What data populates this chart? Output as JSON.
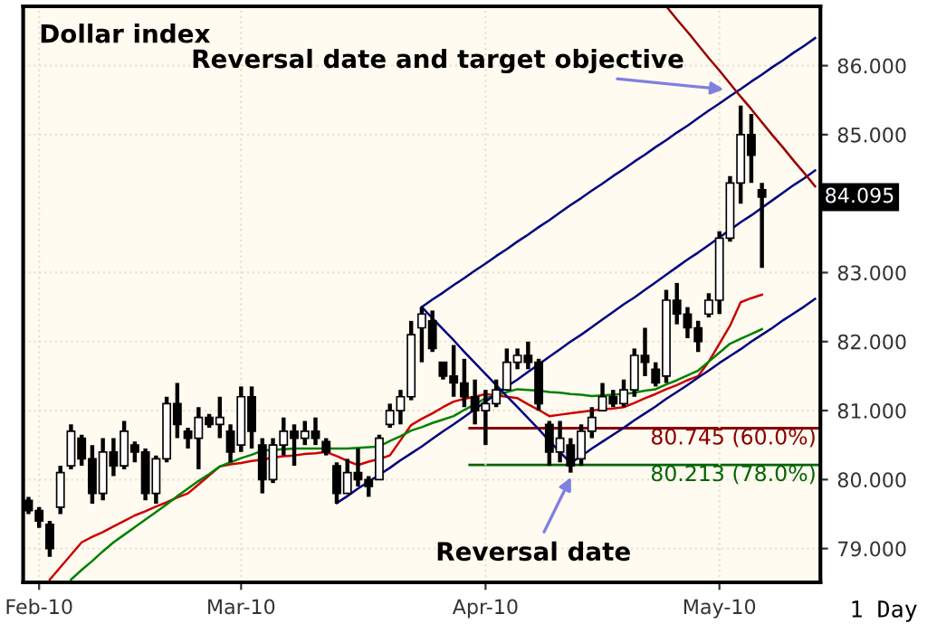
{
  "chart_data": {
    "type": "candlestick",
    "title": "Dollar index",
    "categories": [
      null,
      "Feb-10",
      null,
      null,
      null,
      null,
      null,
      null,
      null,
      null,
      null,
      null,
      null,
      null,
      null,
      null,
      null,
      null,
      null,
      null,
      "Mar-10",
      null,
      null,
      null,
      null,
      null,
      null,
      null,
      null,
      null,
      null,
      null,
      null,
      null,
      null,
      null,
      null,
      null,
      null,
      null,
      null,
      null,
      null,
      "Apr-10",
      null,
      null,
      null,
      null,
      null,
      null,
      null,
      null,
      null,
      null,
      null,
      null,
      null,
      null,
      null,
      null,
      null,
      null,
      null,
      null,
      null,
      "May-10",
      null,
      null,
      null,
      null,
      null,
      null,
      null,
      null,
      null
    ],
    "ohlc": [
      [
        79.7,
        79.75,
        79.5,
        79.55
      ],
      [
        79.55,
        79.6,
        79.3,
        79.4
      ],
      [
        79.35,
        79.4,
        78.88,
        79.0
      ],
      [
        79.6,
        80.2,
        79.5,
        80.1
      ],
      [
        80.2,
        80.8,
        80.15,
        80.7
      ],
      [
        80.6,
        80.65,
        80.2,
        80.3
      ],
      [
        80.3,
        80.5,
        79.65,
        79.8
      ],
      [
        79.8,
        80.6,
        79.7,
        80.4
      ],
      [
        80.4,
        80.6,
        80.05,
        80.2
      ],
      [
        80.2,
        80.85,
        80.15,
        80.7
      ],
      [
        80.5,
        80.55,
        80.25,
        80.4
      ],
      [
        80.4,
        80.45,
        79.7,
        79.8
      ],
      [
        79.8,
        80.35,
        79.65,
        80.3
      ],
      [
        80.3,
        81.2,
        80.25,
        81.1
      ],
      [
        81.1,
        81.4,
        80.6,
        80.8
      ],
      [
        80.7,
        80.75,
        80.45,
        80.6
      ],
      [
        80.6,
        81.05,
        80.15,
        80.9
      ],
      [
        80.9,
        80.95,
        80.75,
        80.8
      ],
      [
        80.8,
        81.2,
        80.6,
        80.9
      ],
      [
        80.7,
        80.8,
        80.25,
        80.4
      ],
      [
        80.5,
        81.35,
        80.4,
        81.2
      ],
      [
        81.2,
        81.35,
        80.45,
        80.7
      ],
      [
        80.5,
        80.6,
        79.8,
        80.0
      ],
      [
        80.0,
        80.6,
        79.95,
        80.5
      ],
      [
        80.5,
        80.9,
        80.35,
        80.7
      ],
      [
        80.7,
        80.8,
        80.2,
        80.6
      ],
      [
        80.6,
        80.85,
        80.5,
        80.7
      ],
      [
        80.7,
        80.9,
        80.5,
        80.6
      ],
      [
        80.55,
        80.6,
        80.35,
        80.4
      ],
      [
        80.2,
        80.25,
        79.65,
        79.8
      ],
      [
        79.8,
        80.3,
        79.8,
        80.1
      ],
      [
        80.1,
        80.45,
        79.9,
        80.0
      ],
      [
        80.0,
        80.05,
        79.75,
        79.9
      ],
      [
        80.0,
        80.65,
        80.0,
        80.6
      ],
      [
        80.8,
        81.1,
        80.75,
        81.0
      ],
      [
        81.0,
        81.3,
        80.8,
        81.2
      ],
      [
        81.2,
        82.3,
        81.15,
        82.1
      ],
      [
        82.2,
        82.5,
        81.7,
        82.4
      ],
      [
        82.3,
        82.45,
        81.85,
        81.9
      ],
      [
        81.7,
        81.7,
        81.45,
        81.5
      ],
      [
        81.5,
        81.95,
        81.2,
        81.4
      ],
      [
        81.4,
        81.75,
        81.05,
        81.2
      ],
      [
        81.2,
        81.45,
        80.8,
        81.0
      ],
      [
        81.0,
        81.3,
        80.5,
        81.1
      ],
      [
        81.1,
        81.45,
        81.05,
        81.3
      ],
      [
        81.3,
        81.9,
        81.3,
        81.7
      ],
      [
        81.7,
        81.9,
        81.6,
        81.8
      ],
      [
        81.8,
        82.0,
        81.6,
        81.7
      ],
      [
        81.7,
        81.75,
        81.0,
        81.1
      ],
      [
        80.8,
        80.85,
        80.2,
        80.4
      ],
      [
        80.4,
        80.85,
        80.25,
        80.6
      ],
      [
        80.5,
        80.6,
        80.1,
        80.2
      ],
      [
        80.3,
        80.8,
        80.2,
        80.7
      ],
      [
        80.7,
        81.05,
        80.6,
        80.9
      ],
      [
        81.0,
        81.4,
        81.0,
        81.2
      ],
      [
        81.2,
        81.3,
        81.05,
        81.1
      ],
      [
        81.1,
        81.45,
        81.05,
        81.3
      ],
      [
        81.3,
        81.9,
        81.2,
        81.8
      ],
      [
        81.8,
        82.2,
        81.5,
        81.7
      ],
      [
        81.6,
        81.7,
        81.35,
        81.4
      ],
      [
        81.5,
        82.75,
        81.4,
        82.6
      ],
      [
        82.6,
        82.85,
        82.25,
        82.4
      ],
      [
        82.4,
        82.5,
        82.05,
        82.2
      ],
      [
        82.2,
        82.3,
        81.85,
        82.0
      ],
      [
        82.4,
        82.7,
        82.35,
        82.6
      ],
      [
        82.6,
        83.6,
        82.4,
        83.5
      ],
      [
        83.5,
        84.4,
        83.45,
        84.3
      ],
      [
        84.3,
        85.42,
        84.0,
        85.0
      ],
      [
        85.0,
        85.3,
        84.3,
        84.7
      ],
      [
        84.2,
        84.3,
        83.07,
        84.095
      ],
      null,
      null,
      null,
      null,
      null
    ],
    "series": [
      {
        "type": "line",
        "color": "#cc0000",
        "values": [
          null,
          null,
          78.55,
          78.73,
          78.91,
          79.09,
          79.17,
          79.24,
          79.32,
          79.4,
          79.48,
          79.54,
          79.61,
          79.67,
          79.74,
          79.8,
          79.93,
          80.06,
          80.19,
          80.22,
          80.24,
          80.27,
          80.29,
          80.32,
          80.34,
          80.35,
          80.37,
          80.38,
          80.4,
          80.34,
          80.27,
          80.21,
          80.26,
          80.3,
          80.35,
          80.57,
          80.79,
          80.88,
          80.96,
          81.05,
          81.13,
          81.17,
          81.2,
          81.24,
          81.22,
          81.2,
          81.18,
          81.09,
          81.01,
          80.92,
          80.94,
          80.96,
          80.98,
          81.0,
          81.02,
          81.03,
          81.05,
          81.11,
          81.18,
          81.24,
          81.31,
          81.37,
          81.44,
          81.5,
          81.71,
          81.97,
          82.23,
          82.57,
          82.63,
          82.68,
          null,
          null,
          null,
          null,
          null
        ]
      },
      {
        "type": "line",
        "color": "#008000",
        "values": [
          null,
          null,
          null,
          null,
          78.55,
          78.69,
          78.82,
          78.96,
          79.09,
          79.2,
          79.31,
          79.42,
          79.53,
          79.64,
          79.76,
          79.87,
          79.98,
          80.08,
          80.19,
          80.25,
          80.31,
          80.36,
          80.42,
          80.43,
          80.44,
          80.45,
          80.45,
          80.45,
          80.45,
          80.45,
          80.45,
          80.46,
          80.47,
          80.48,
          80.56,
          80.63,
          80.71,
          80.76,
          80.82,
          80.87,
          80.92,
          81.01,
          81.09,
          81.18,
          81.22,
          81.27,
          81.31,
          81.3,
          81.29,
          81.27,
          81.26,
          81.24,
          81.23,
          81.21,
          81.22,
          81.23,
          81.24,
          81.26,
          81.29,
          81.31,
          81.38,
          81.44,
          81.51,
          81.58,
          81.71,
          81.84,
          81.97,
          82.04,
          82.11,
          82.18,
          null,
          null,
          null,
          null,
          null
        ]
      },
      {
        "type": "line",
        "color": "#000080",
        "values": [
          null,
          null,
          null,
          null,
          null,
          null,
          null,
          null,
          null,
          null,
          null,
          null,
          null,
          null,
          null,
          null,
          null,
          null,
          null,
          null,
          null,
          null,
          null,
          null,
          null,
          null,
          null,
          null,
          null,
          null,
          null,
          null,
          null,
          null,
          null,
          null,
          null,
          82.5,
          82.61,
          82.71,
          82.82,
          82.92,
          83.03,
          83.13,
          83.24,
          83.34,
          83.45,
          83.55,
          83.66,
          83.76,
          83.87,
          83.98,
          84.08,
          84.19,
          84.29,
          84.4,
          84.5,
          84.61,
          84.71,
          84.82,
          84.92,
          85.03,
          85.13,
          85.24,
          85.35,
          85.45,
          85.56,
          85.66,
          85.77,
          85.87,
          85.98,
          86.08,
          86.19,
          86.29,
          86.4
        ]
      },
      {
        "type": "line",
        "color": "#000080",
        "values": [
          null,
          null,
          null,
          null,
          null,
          null,
          null,
          null,
          null,
          null,
          null,
          null,
          null,
          null,
          null,
          null,
          null,
          null,
          null,
          null,
          null,
          null,
          null,
          null,
          null,
          null,
          null,
          null,
          null,
          79.66,
          79.76,
          79.87,
          79.97,
          80.07,
          80.17,
          80.28,
          80.38,
          80.48,
          80.59,
          80.7,
          80.8,
          80.91,
          81.02,
          81.13,
          81.24,
          81.35,
          81.45,
          81.56,
          81.67,
          81.78,
          81.89,
          82.0,
          82.1,
          82.21,
          82.32,
          82.43,
          82.54,
          82.64,
          82.75,
          82.86,
          82.97,
          83.08,
          83.19,
          83.29,
          83.4,
          83.51,
          83.62,
          83.73,
          83.83,
          83.94,
          84.05,
          84.16,
          84.27,
          84.37,
          84.48
        ]
      },
      {
        "type": "line",
        "color": "#000080",
        "values": [
          null,
          null,
          null,
          null,
          null,
          null,
          null,
          null,
          null,
          null,
          null,
          null,
          null,
          null,
          null,
          null,
          null,
          null,
          null,
          null,
          null,
          null,
          null,
          null,
          null,
          null,
          null,
          null,
          null,
          null,
          null,
          null,
          null,
          null,
          null,
          null,
          null,
          82.5,
          82.34,
          82.18,
          82.02,
          81.85,
          81.69,
          81.53,
          81.37,
          81.21,
          81.05,
          80.89,
          80.73,
          80.56,
          80.4,
          80.24,
          80.34,
          80.45,
          80.55,
          80.65,
          80.75,
          80.86,
          80.96,
          81.06,
          81.17,
          81.27,
          81.37,
          81.48,
          81.58,
          81.69,
          81.79,
          81.89,
          82.0,
          82.1,
          82.2,
          82.31,
          82.41,
          82.51,
          82.62
        ]
      },
      {
        "type": "line",
        "color": "#990000",
        "values": [
          null,
          null,
          null,
          null,
          null,
          null,
          null,
          null,
          null,
          null,
          null,
          null,
          null,
          null,
          null,
          null,
          null,
          null,
          null,
          null,
          null,
          null,
          null,
          null,
          null,
          null,
          null,
          null,
          null,
          null,
          null,
          null,
          null,
          null,
          null,
          null,
          null,
          null,
          null,
          null,
          null,
          null,
          null,
          null,
          null,
          null,
          null,
          null,
          null,
          null,
          null,
          null,
          null,
          null,
          null,
          null,
          null,
          null,
          null,
          null,
          86.86,
          86.67,
          86.49,
          86.3,
          86.11,
          85.93,
          85.74,
          85.55,
          85.37,
          85.18,
          84.99,
          84.81,
          84.62,
          84.44,
          84.25
        ]
      }
    ],
    "ylim": [
      78.51,
      86.86
    ],
    "yticks": [
      {
        "value": 79,
        "label": "79.000"
      },
      {
        "value": 80,
        "label": "80.000"
      },
      {
        "value": 81,
        "label": "81.000"
      },
      {
        "value": 82,
        "label": "82.000"
      },
      {
        "value": 83,
        "label": "83.000"
      },
      {
        "value": 85,
        "label": "85.000"
      },
      {
        "value": 86,
        "label": "86.000"
      }
    ],
    "ref_lines": [
      {
        "axis": "y",
        "value": 80.745,
        "label": "80.745 (60.0%)",
        "color": "#8b0000"
      },
      {
        "axis": "y",
        "value": 80.213,
        "label": "80.213 (78.0%)",
        "color": "#006400"
      }
    ],
    "annotations": [
      "Reversal date and target objective",
      {
        "text": "Reversal date",
        "y": 80.1
      },
      "1 Day",
      "84.095"
    ],
    "grid": true
  }
}
